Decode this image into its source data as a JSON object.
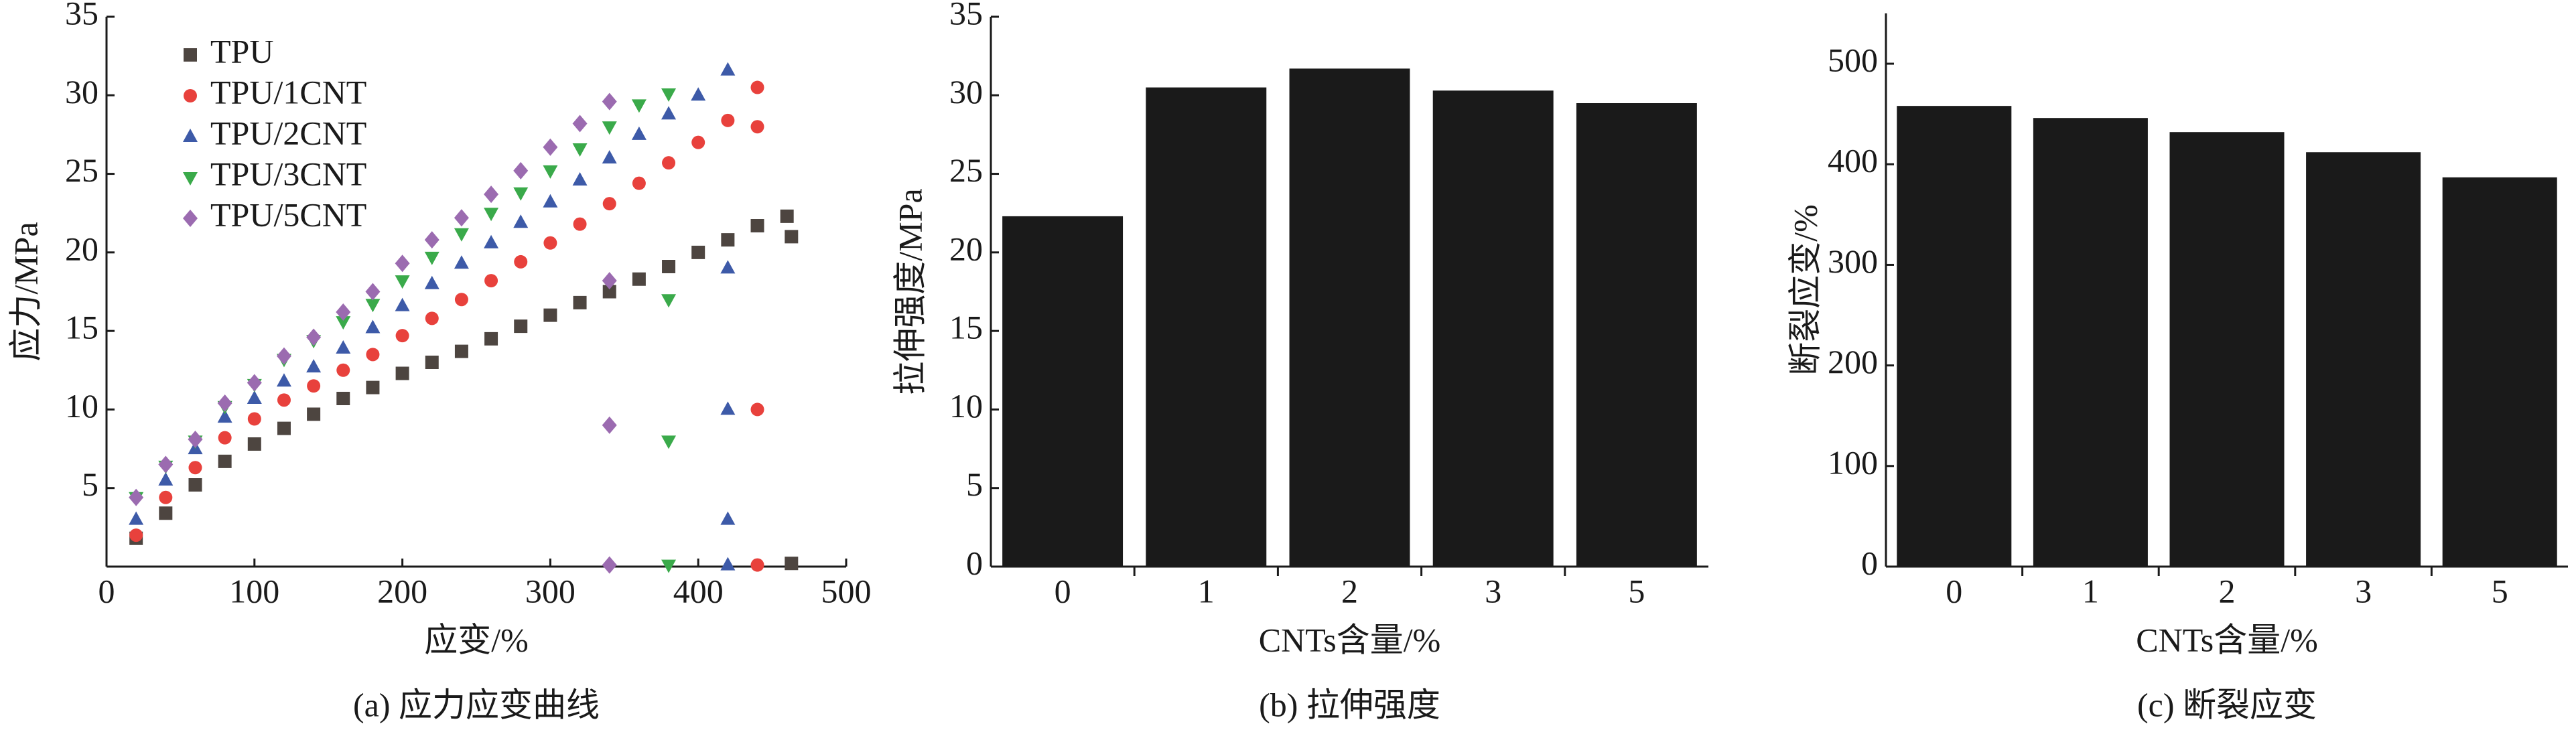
{
  "chart_data": [
    {
      "type": "scatter",
      "xlabel": "应变/%",
      "ylabel": "应力/MPa",
      "caption": "(a) 应力应变曲线",
      "xlim": [
        0,
        500
      ],
      "ylim": [
        0,
        35
      ],
      "xticks": [
        0,
        100,
        200,
        300,
        400,
        500
      ],
      "yticks": [
        5,
        10,
        15,
        20,
        25,
        30,
        35
      ],
      "legend": "upper left",
      "series": [
        {
          "name": "TPU",
          "color": "#4d4540",
          "marker": "square",
          "x": [
            20,
            40,
            60,
            80,
            100,
            120,
            140,
            160,
            180,
            200,
            220,
            240,
            260,
            280,
            300,
            320,
            340,
            360,
            380,
            400,
            420,
            440,
            460,
            463,
            463
          ],
          "values": [
            1.8,
            3.4,
            5.2,
            6.7,
            7.8,
            8.8,
            9.7,
            10.7,
            11.4,
            12.3,
            13.0,
            13.7,
            14.5,
            15.3,
            16.0,
            16.8,
            17.5,
            18.3,
            19.1,
            20.0,
            20.8,
            21.7,
            22.3,
            21.0,
            0.2
          ]
        },
        {
          "name": "TPU/1CNT",
          "color": "#e8413c",
          "marker": "circle",
          "x": [
            20,
            40,
            60,
            80,
            100,
            120,
            140,
            160,
            180,
            200,
            220,
            240,
            260,
            280,
            300,
            320,
            340,
            360,
            380,
            400,
            420,
            440,
            440,
            440,
            440
          ],
          "values": [
            2.0,
            4.4,
            6.3,
            8.2,
            9.4,
            10.6,
            11.5,
            12.5,
            13.5,
            14.7,
            15.8,
            17.0,
            18.2,
            19.4,
            20.6,
            21.8,
            23.1,
            24.4,
            25.7,
            27.0,
            28.4,
            30.5,
            28.0,
            10.0,
            0.1
          ]
        },
        {
          "name": "TPU/2CNT",
          "color": "#3d5aa8",
          "marker": "triangle-up",
          "x": [
            20,
            40,
            60,
            80,
            100,
            120,
            140,
            160,
            180,
            200,
            220,
            240,
            260,
            280,
            300,
            320,
            340,
            360,
            380,
            400,
            420,
            420,
            420,
            420,
            420
          ],
          "values": [
            3.0,
            5.5,
            7.5,
            9.5,
            10.7,
            11.8,
            12.7,
            13.9,
            15.2,
            16.6,
            18.0,
            19.3,
            20.6,
            21.9,
            23.2,
            24.6,
            26.0,
            27.5,
            28.8,
            30.0,
            31.6,
            19.0,
            10.0,
            3.0,
            0.1
          ]
        },
        {
          "name": "TPU/3CNT",
          "color": "#3aaa4a",
          "marker": "triangle-down",
          "x": [
            20,
            40,
            60,
            80,
            100,
            120,
            140,
            160,
            180,
            200,
            220,
            240,
            260,
            280,
            300,
            320,
            340,
            360,
            380,
            380,
            380,
            380
          ],
          "values": [
            4.4,
            6.4,
            8.0,
            10.2,
            11.6,
            13.2,
            14.4,
            15.6,
            16.7,
            18.2,
            19.7,
            21.2,
            22.5,
            23.8,
            25.2,
            26.6,
            28.0,
            29.4,
            30.1,
            17.0,
            8.0,
            0.1
          ]
        },
        {
          "name": "TPU/5CNT",
          "color": "#9b6bb0",
          "marker": "diamond",
          "x": [
            20,
            40,
            60,
            80,
            100,
            120,
            140,
            160,
            180,
            200,
            220,
            240,
            260,
            280,
            300,
            320,
            340,
            340,
            340,
            340
          ],
          "values": [
            4.4,
            6.5,
            8.1,
            10.4,
            11.7,
            13.4,
            14.6,
            16.2,
            17.5,
            19.3,
            20.8,
            22.2,
            23.7,
            25.2,
            26.7,
            28.2,
            29.6,
            18.2,
            9.0,
            0.1
          ]
        }
      ]
    },
    {
      "type": "bar",
      "xlabel": "CNTs含量/%",
      "ylabel": "拉伸强度/MPa",
      "caption": "(b) 拉伸强度",
      "categories": [
        "0",
        "1",
        "2",
        "3",
        "5"
      ],
      "values": [
        22.3,
        30.5,
        31.7,
        30.3,
        29.5
      ],
      "color": "#1a1a1a",
      "ylim": [
        0,
        35
      ],
      "yticks": [
        0,
        5,
        10,
        15,
        20,
        25,
        30,
        35
      ]
    },
    {
      "type": "bar",
      "xlabel": "CNTs含量/%",
      "ylabel": "断裂应变/%",
      "caption": "(c) 断裂应变",
      "categories": [
        "0",
        "1",
        "2",
        "3",
        "5"
      ],
      "values": [
        458,
        446,
        432,
        412,
        387
      ],
      "color": "#1a1a1a",
      "ylim": [
        0,
        550
      ],
      "yticks": [
        0,
        100,
        200,
        300,
        400,
        500
      ]
    }
  ]
}
